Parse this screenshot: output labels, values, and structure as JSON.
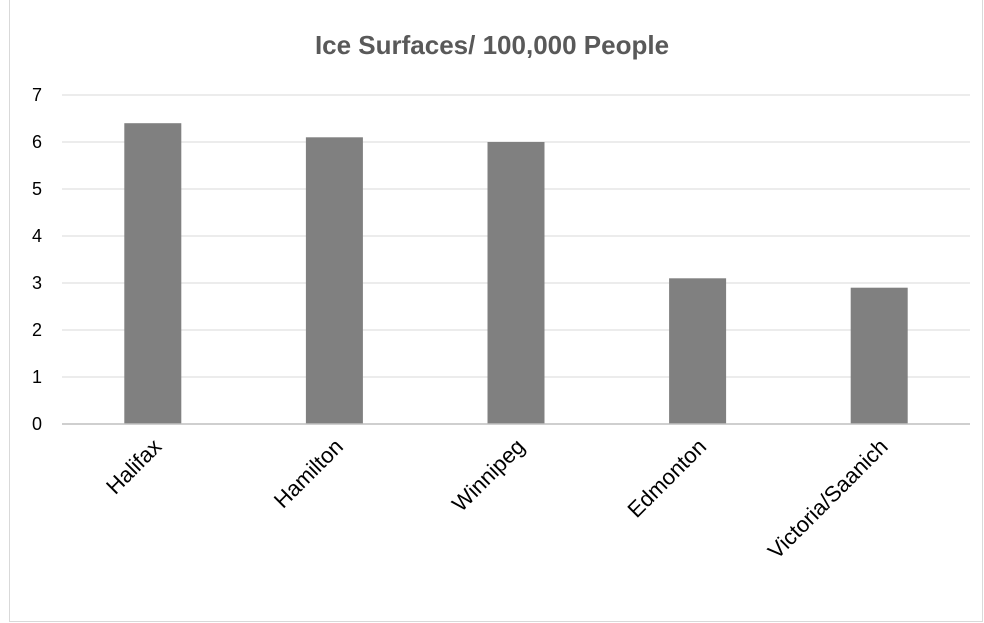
{
  "chart_data": {
    "type": "bar",
    "title": "Ice Surfaces/ 100,000 People",
    "categories": [
      "Halifax",
      "Hamilton",
      "Winnipeg",
      "Edmonton",
      "Victoria/Saanich"
    ],
    "values": [
      6.4,
      6.1,
      6.0,
      3.1,
      2.9
    ],
    "ylim": [
      0,
      7
    ],
    "yticks": [
      0,
      1,
      2,
      3,
      4,
      5,
      6,
      7
    ],
    "grid": true,
    "bar_color": "#808080",
    "grid_color": "#d9d9d9"
  }
}
